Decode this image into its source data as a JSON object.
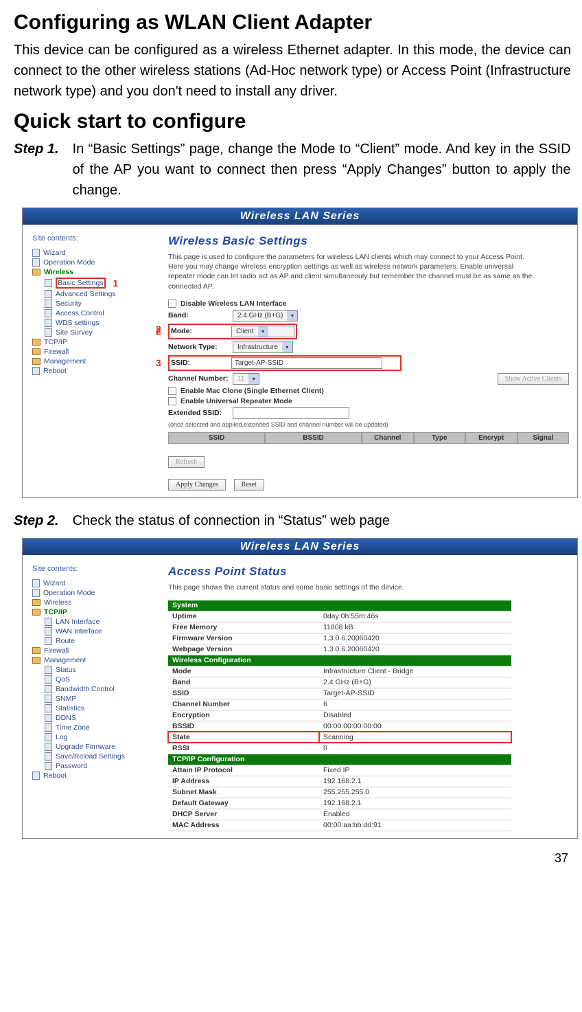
{
  "h1a": "Configuring as WLAN Client Adapter",
  "intro": "This device can be configured as a wireless Ethernet adapter. In this mode, the device can connect to the other wireless stations (Ad-Hoc network type) or Access Point (Infrastructure network type) and you don't need to install any driver.",
  "h1b": "Quick start to configure",
  "step1_label": "Step 1.",
  "step1_text": "In “Basic Settings” page, change the Mode to “Client” mode. And key in the SSID of the AP you want to connect then press “Apply Changes” button to apply the change.",
  "step2_label": "Step 2.",
  "step2_text": "Check the status of connection in “Status” web page",
  "banner": "Wireless LAN Series",
  "nav_title": "Site contents:",
  "nav1": {
    "items": [
      {
        "icon": "page",
        "label": "Wizard"
      },
      {
        "icon": "page",
        "label": "Operation Mode"
      },
      {
        "icon": "folder",
        "label": "Wireless",
        "green": true
      },
      {
        "icon": "page",
        "label": "Basic Settings",
        "sub": true,
        "redbox": true,
        "callout": "1"
      },
      {
        "icon": "page",
        "label": "Advanced Settings",
        "sub": true
      },
      {
        "icon": "page",
        "label": "Security",
        "sub": true
      },
      {
        "icon": "page",
        "label": "Access Control",
        "sub": true
      },
      {
        "icon": "page",
        "label": "WDS settings",
        "sub": true
      },
      {
        "icon": "page",
        "label": "Site Survey",
        "sub": true
      },
      {
        "icon": "folder",
        "label": "TCP/IP"
      },
      {
        "icon": "folder",
        "label": "Firewall"
      },
      {
        "icon": "folder",
        "label": "Management"
      },
      {
        "icon": "page",
        "label": "Reboot"
      }
    ]
  },
  "basic": {
    "title": "Wireless Basic Settings",
    "desc": "This page is used to configure the parameters for wireless LAN clients which may connect to your Access Point. Here you may change wireless encryption settings as well as wireless network parameters. Enable universal repeater mode can let radio act as AP and client simultaneouly but remember the channel must be as same as the connected AP.",
    "chk_disable": "Disable Wireless LAN Interface",
    "lbl_band": "Band:",
    "val_band": "2.4 GHz (B+G)",
    "lbl_mode": "Mode:",
    "val_mode": "Client",
    "callout_mode": "2",
    "lbl_net": "Network Type:",
    "val_net": "Infrastructure",
    "lbl_ssid": "SSID:",
    "val_ssid": "Target-AP-SSID",
    "callout_ssid": "3",
    "lbl_ch": "Channel Number:",
    "val_ch": "11",
    "btn_show": "Show Active Clients",
    "chk_mac": "Enable Mac Clone (Single Ethernet Client)",
    "chk_urep": "Enable Universal Repeater Mode",
    "lbl_ext": "Extended SSID:",
    "note": "(once selected and applied,extended SSID and channel number will be updated)",
    "hdr": {
      "ssid": "SSID",
      "bssid": "BSSID",
      "ch": "Channel",
      "type": "Type",
      "enc": "Encrypt",
      "sig": "Signal"
    },
    "btn_refresh": "Refresh",
    "btn_apply": "Apply Changes",
    "btn_reset": "Reset"
  },
  "nav2": {
    "items": [
      {
        "icon": "page",
        "label": "Wizard"
      },
      {
        "icon": "page",
        "label": "Operation Mode"
      },
      {
        "icon": "folder",
        "label": "Wireless"
      },
      {
        "icon": "folder",
        "label": "TCP/IP",
        "green": true
      },
      {
        "icon": "page",
        "label": "LAN Interface",
        "sub": true
      },
      {
        "icon": "page",
        "label": "WAN Interface",
        "sub": true
      },
      {
        "icon": "page",
        "label": "Route",
        "sub": true
      },
      {
        "icon": "folder",
        "label": "Firewall"
      },
      {
        "icon": "folder",
        "label": "Management",
        "open": true
      },
      {
        "icon": "page",
        "label": "Status",
        "sub": true
      },
      {
        "icon": "page",
        "label": "QoS",
        "sub": true
      },
      {
        "icon": "page",
        "label": "Bandwidth Control",
        "sub": true
      },
      {
        "icon": "page",
        "label": "SNMP",
        "sub": true
      },
      {
        "icon": "page",
        "label": "Statistics",
        "sub": true
      },
      {
        "icon": "page",
        "label": "DDNS",
        "sub": true
      },
      {
        "icon": "page",
        "label": "Time Zone",
        "sub": true
      },
      {
        "icon": "page",
        "label": "Log",
        "sub": true
      },
      {
        "icon": "page",
        "label": "Upgrade Firmware",
        "sub": true
      },
      {
        "icon": "page",
        "label": "Save/Reload Settings",
        "sub": true
      },
      {
        "icon": "page",
        "label": "Password",
        "sub": true
      },
      {
        "icon": "page",
        "label": "Reboot"
      }
    ]
  },
  "status": {
    "title": "Access Point Status",
    "desc": "This page shows the current status and some basic settings of the device.",
    "rows": [
      {
        "section": "System"
      },
      {
        "k": "Uptime",
        "v": "0day:0h:55m:46s"
      },
      {
        "k": "Free Memory",
        "v": "11808 kB"
      },
      {
        "k": "Firmware Version",
        "v": "1.3.0.6.20060420"
      },
      {
        "k": "Webpage Version",
        "v": "1.3.0.6.20060420"
      },
      {
        "section": "Wireless Configuration"
      },
      {
        "k": "Mode",
        "v": "Infrastructure Client - Bridge"
      },
      {
        "k": "Band",
        "v": "2.4 GHz (B+G)"
      },
      {
        "k": "SSID",
        "v": "Target-AP-SSID"
      },
      {
        "k": "Channel Number",
        "v": "6"
      },
      {
        "k": "Encryption",
        "v": "Disabled"
      },
      {
        "k": "BSSID",
        "v": "00:00:00:00:00:00"
      },
      {
        "k": "State",
        "v": "Scanning",
        "hl": true
      },
      {
        "k": "RSSI",
        "v": "0"
      },
      {
        "section": "TCP/IP Configuration"
      },
      {
        "k": "Attain IP Protocol",
        "v": "Fixed IP"
      },
      {
        "k": "IP Address",
        "v": "192.168.2.1"
      },
      {
        "k": "Subnet Mask",
        "v": "255.255.255.0"
      },
      {
        "k": "Default Gateway",
        "v": "192.168.2.1"
      },
      {
        "k": "DHCP Server",
        "v": "Enabled"
      },
      {
        "k": "MAC Address",
        "v": "00:00:aa:bb:dd:91"
      }
    ]
  },
  "page_num": "37"
}
